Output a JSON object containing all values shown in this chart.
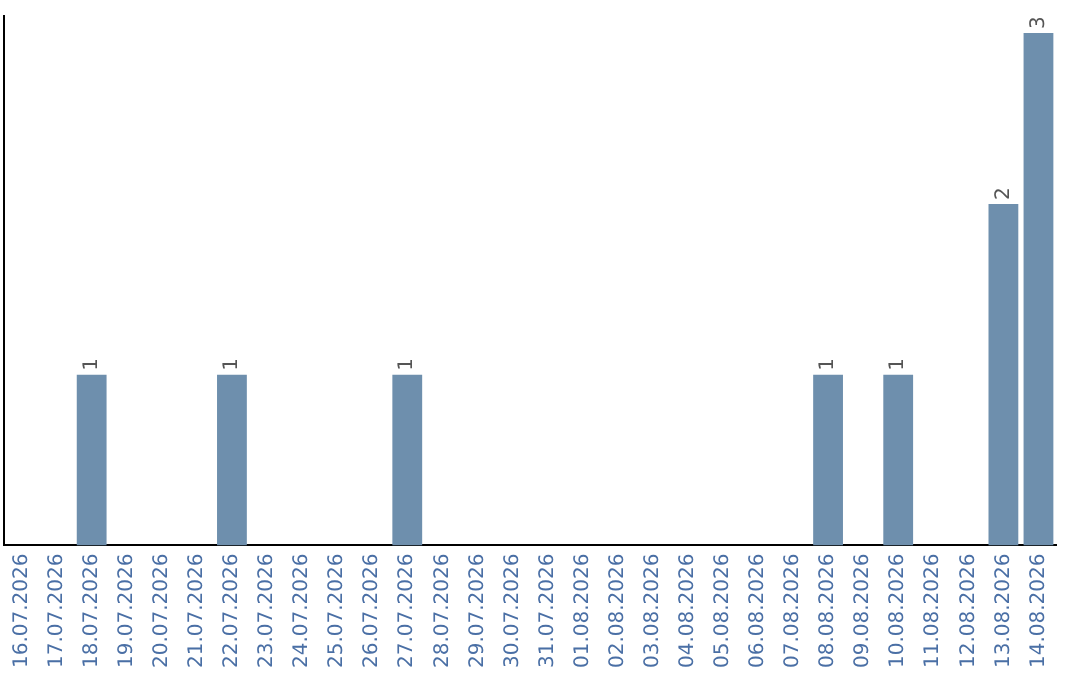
{
  "chart_data": {
    "type": "bar",
    "categories": [
      "16.07.2026",
      "17.07.2026",
      "18.07.2026",
      "19.07.2026",
      "20.07.2026",
      "21.07.2026",
      "22.07.2026",
      "23.07.2026",
      "24.07.2026",
      "25.07.2026",
      "26.07.2026",
      "27.07.2026",
      "28.07.2026",
      "29.07.2026",
      "30.07.2026",
      "31.07.2026",
      "01.08.2026",
      "02.08.2026",
      "03.08.2026",
      "04.08.2026",
      "05.08.2026",
      "06.08.2026",
      "07.08.2026",
      "08.08.2026",
      "09.08.2026",
      "10.08.2026",
      "11.08.2026",
      "12.08.2026",
      "13.08.2026",
      "14.08.2026"
    ],
    "values": [
      0,
      0,
      1,
      0,
      0,
      0,
      1,
      0,
      0,
      0,
      0,
      1,
      0,
      0,
      0,
      0,
      0,
      0,
      0,
      0,
      0,
      0,
      0,
      1,
      0,
      1,
      0,
      0,
      2,
      3
    ],
    "color": "#6e8fad",
    "ylim": [
      0,
      3.1
    ],
    "tick_labels": "x",
    "grid": false,
    "legend": false,
    "value_labels": [
      null,
      null,
      "1",
      null,
      null,
      null,
      "1",
      null,
      null,
      null,
      null,
      "1",
      null,
      null,
      null,
      null,
      null,
      null,
      null,
      null,
      null,
      null,
      null,
      "1",
      null,
      "1",
      null,
      null,
      "2",
      "3"
    ]
  }
}
